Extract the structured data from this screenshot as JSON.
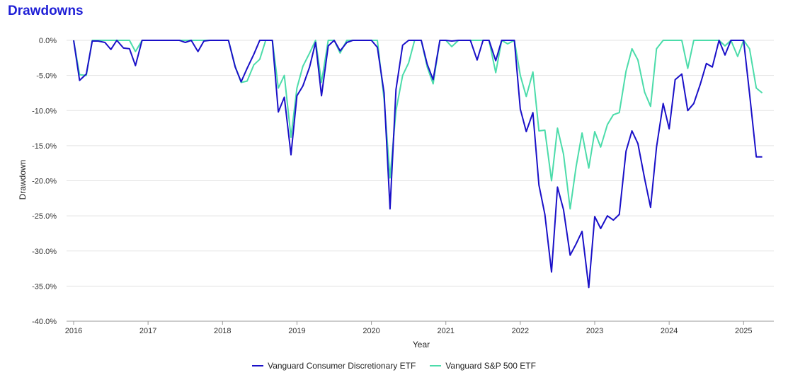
{
  "chart_data": {
    "type": "line",
    "title": "Drawdowns",
    "xlabel": "Year",
    "ylabel": "Drawdown",
    "xlim": [
      2016,
      2025.33
    ],
    "ylim": [
      -40,
      0
    ],
    "yticks": [
      0,
      -5,
      -10,
      -15,
      -20,
      -25,
      -30,
      -35,
      -40
    ],
    "ytick_labels": [
      "0.0%",
      "-5.0%",
      "-10.0%",
      "-15.0%",
      "-20.0%",
      "-25.0%",
      "-30.0%",
      "-35.0%",
      "-40.0%"
    ],
    "xticks": [
      2016,
      2017,
      2018,
      2019,
      2020,
      2021,
      2022,
      2023,
      2024,
      2025
    ],
    "xtick_labels": [
      "2016",
      "2017",
      "2018",
      "2019",
      "2020",
      "2021",
      "2022",
      "2023",
      "2024",
      "2025"
    ],
    "grid": "horizontal",
    "legend_position": "bottom",
    "series": [
      {
        "name": "Vanguard Consumer Discretionary ETF",
        "color": "#1a10c8",
        "points": [
          [
            2016.0,
            0.0
          ],
          [
            2016.08,
            -5.7
          ],
          [
            2016.17,
            -4.8
          ],
          [
            2016.25,
            -0.1
          ],
          [
            2016.33,
            -0.1
          ],
          [
            2016.42,
            -0.3
          ],
          [
            2016.5,
            -1.3
          ],
          [
            2016.58,
            0.0
          ],
          [
            2016.67,
            -1.1
          ],
          [
            2016.75,
            -1.2
          ],
          [
            2016.83,
            -3.6
          ],
          [
            2016.92,
            0.0
          ],
          [
            2017.0,
            0.0
          ],
          [
            2017.08,
            0.0
          ],
          [
            2017.17,
            0.0
          ],
          [
            2017.25,
            0.0
          ],
          [
            2017.33,
            0.0
          ],
          [
            2017.42,
            0.0
          ],
          [
            2017.5,
            -0.3
          ],
          [
            2017.58,
            0.0
          ],
          [
            2017.67,
            -1.6
          ],
          [
            2017.75,
            -0.1
          ],
          [
            2017.83,
            0.0
          ],
          [
            2017.92,
            0.0
          ],
          [
            2018.0,
            0.0
          ],
          [
            2018.08,
            0.0
          ],
          [
            2018.17,
            -3.8
          ],
          [
            2018.25,
            -5.9
          ],
          [
            2018.33,
            -4.0
          ],
          [
            2018.42,
            -2.0
          ],
          [
            2018.5,
            0.0
          ],
          [
            2018.58,
            0.0
          ],
          [
            2018.67,
            0.0
          ],
          [
            2018.75,
            -10.2
          ],
          [
            2018.83,
            -8.1
          ],
          [
            2018.92,
            -16.3
          ],
          [
            2019.0,
            -7.9
          ],
          [
            2019.08,
            -6.5
          ],
          [
            2019.17,
            -3.8
          ],
          [
            2019.25,
            -0.3
          ],
          [
            2019.33,
            -7.9
          ],
          [
            2019.42,
            -0.8
          ],
          [
            2019.5,
            0.0
          ],
          [
            2019.58,
            -1.5
          ],
          [
            2019.67,
            -0.3
          ],
          [
            2019.75,
            0.0
          ],
          [
            2019.83,
            0.0
          ],
          [
            2019.92,
            0.0
          ],
          [
            2020.0,
            0.0
          ],
          [
            2020.08,
            -1.0
          ],
          [
            2020.17,
            -7.5
          ],
          [
            2020.25,
            -24.0
          ],
          [
            2020.33,
            -7.0
          ],
          [
            2020.42,
            -0.7
          ],
          [
            2020.5,
            0.0
          ],
          [
            2020.58,
            0.0
          ],
          [
            2020.67,
            0.0
          ],
          [
            2020.75,
            -3.4
          ],
          [
            2020.83,
            -5.6
          ],
          [
            2020.92,
            0.0
          ],
          [
            2021.0,
            0.0
          ],
          [
            2021.08,
            -0.1
          ],
          [
            2021.17,
            0.0
          ],
          [
            2021.25,
            0.0
          ],
          [
            2021.33,
            0.0
          ],
          [
            2021.42,
            -2.8
          ],
          [
            2021.5,
            0.0
          ],
          [
            2021.58,
            0.0
          ],
          [
            2021.67,
            -2.9
          ],
          [
            2021.75,
            0.0
          ],
          [
            2021.83,
            0.0
          ],
          [
            2021.92,
            0.0
          ],
          [
            2022.0,
            -9.8
          ],
          [
            2022.08,
            -13.0
          ],
          [
            2022.17,
            -10.3
          ],
          [
            2022.25,
            -20.6
          ],
          [
            2022.33,
            -24.8
          ],
          [
            2022.42,
            -33.0
          ],
          [
            2022.5,
            -20.9
          ],
          [
            2022.58,
            -24.1
          ],
          [
            2022.67,
            -30.6
          ],
          [
            2022.75,
            -29.0
          ],
          [
            2022.83,
            -27.2
          ],
          [
            2022.92,
            -35.2
          ],
          [
            2023.0,
            -25.1
          ],
          [
            2023.08,
            -26.8
          ],
          [
            2023.17,
            -25.0
          ],
          [
            2023.25,
            -25.6
          ],
          [
            2023.33,
            -24.8
          ],
          [
            2023.42,
            -15.8
          ],
          [
            2023.5,
            -12.9
          ],
          [
            2023.58,
            -14.7
          ],
          [
            2023.67,
            -19.7
          ],
          [
            2023.75,
            -23.8
          ],
          [
            2023.83,
            -15.2
          ],
          [
            2023.92,
            -9.0
          ],
          [
            2024.0,
            -12.6
          ],
          [
            2024.08,
            -5.6
          ],
          [
            2024.17,
            -4.8
          ],
          [
            2024.25,
            -10.0
          ],
          [
            2024.33,
            -9.0
          ],
          [
            2024.42,
            -6.2
          ],
          [
            2024.5,
            -3.3
          ],
          [
            2024.58,
            -3.8
          ],
          [
            2024.67,
            0.0
          ],
          [
            2024.75,
            -2.1
          ],
          [
            2024.83,
            0.0
          ],
          [
            2024.92,
            0.0
          ],
          [
            2025.0,
            0.0
          ],
          [
            2025.08,
            -7.6
          ],
          [
            2025.17,
            -16.6
          ],
          [
            2025.25,
            -16.6
          ]
        ]
      },
      {
        "name": "Vanguard S&P 500 ETF",
        "color": "#4cdcaa",
        "points": [
          [
            2016.0,
            0.0
          ],
          [
            2016.08,
            -4.9
          ],
          [
            2016.17,
            -5.0
          ],
          [
            2016.25,
            0.0
          ],
          [
            2016.33,
            0.0
          ],
          [
            2016.42,
            0.0
          ],
          [
            2016.5,
            0.0
          ],
          [
            2016.58,
            0.0
          ],
          [
            2016.67,
            0.0
          ],
          [
            2016.75,
            0.0
          ],
          [
            2016.83,
            -1.6
          ],
          [
            2016.92,
            0.0
          ],
          [
            2017.0,
            0.0
          ],
          [
            2017.08,
            0.0
          ],
          [
            2017.17,
            0.0
          ],
          [
            2017.25,
            0.0
          ],
          [
            2017.33,
            0.0
          ],
          [
            2017.42,
            0.0
          ],
          [
            2017.5,
            0.0
          ],
          [
            2017.58,
            0.0
          ],
          [
            2017.67,
            0.0
          ],
          [
            2017.75,
            0.0
          ],
          [
            2017.83,
            0.0
          ],
          [
            2017.92,
            0.0
          ],
          [
            2018.0,
            0.0
          ],
          [
            2018.08,
            0.0
          ],
          [
            2018.17,
            -3.7
          ],
          [
            2018.25,
            -6.0
          ],
          [
            2018.33,
            -5.8
          ],
          [
            2018.42,
            -3.5
          ],
          [
            2018.5,
            -2.7
          ],
          [
            2018.58,
            0.0
          ],
          [
            2018.67,
            0.0
          ],
          [
            2018.75,
            -6.8
          ],
          [
            2018.83,
            -5.0
          ],
          [
            2018.92,
            -13.8
          ],
          [
            2019.0,
            -6.8
          ],
          [
            2019.08,
            -3.7
          ],
          [
            2019.17,
            -1.8
          ],
          [
            2019.25,
            0.0
          ],
          [
            2019.33,
            -6.0
          ],
          [
            2019.42,
            0.0
          ],
          [
            2019.5,
            0.0
          ],
          [
            2019.58,
            -1.8
          ],
          [
            2019.67,
            0.0
          ],
          [
            2019.75,
            0.0
          ],
          [
            2019.83,
            0.0
          ],
          [
            2019.92,
            0.0
          ],
          [
            2020.0,
            0.0
          ],
          [
            2020.08,
            0.0
          ],
          [
            2020.17,
            -8.4
          ],
          [
            2020.25,
            -19.6
          ],
          [
            2020.33,
            -10.0
          ],
          [
            2020.42,
            -5.0
          ],
          [
            2020.5,
            -3.2
          ],
          [
            2020.58,
            0.0
          ],
          [
            2020.67,
            0.0
          ],
          [
            2020.75,
            -3.8
          ],
          [
            2020.83,
            -6.2
          ],
          [
            2020.92,
            0.0
          ],
          [
            2021.0,
            0.0
          ],
          [
            2021.08,
            -0.9
          ],
          [
            2021.17,
            0.0
          ],
          [
            2021.25,
            0.0
          ],
          [
            2021.33,
            0.0
          ],
          [
            2021.42,
            0.0
          ],
          [
            2021.5,
            0.0
          ],
          [
            2021.58,
            0.0
          ],
          [
            2021.67,
            -4.6
          ],
          [
            2021.75,
            0.0
          ],
          [
            2021.83,
            -0.5
          ],
          [
            2021.92,
            0.0
          ],
          [
            2022.0,
            -5.0
          ],
          [
            2022.08,
            -8.0
          ],
          [
            2022.17,
            -4.5
          ],
          [
            2022.25,
            -12.9
          ],
          [
            2022.33,
            -12.8
          ],
          [
            2022.42,
            -20.0
          ],
          [
            2022.5,
            -12.5
          ],
          [
            2022.58,
            -16.2
          ],
          [
            2022.67,
            -24.0
          ],
          [
            2022.75,
            -18.0
          ],
          [
            2022.83,
            -13.2
          ],
          [
            2022.92,
            -18.2
          ],
          [
            2023.0,
            -13.0
          ],
          [
            2023.08,
            -15.2
          ],
          [
            2023.17,
            -12.0
          ],
          [
            2023.25,
            -10.6
          ],
          [
            2023.33,
            -10.3
          ],
          [
            2023.42,
            -4.4
          ],
          [
            2023.5,
            -1.2
          ],
          [
            2023.58,
            -2.8
          ],
          [
            2023.67,
            -7.4
          ],
          [
            2023.75,
            -9.4
          ],
          [
            2023.83,
            -1.2
          ],
          [
            2023.92,
            0.0
          ],
          [
            2024.0,
            0.0
          ],
          [
            2024.08,
            0.0
          ],
          [
            2024.17,
            0.0
          ],
          [
            2024.25,
            -4.0
          ],
          [
            2024.33,
            0.0
          ],
          [
            2024.42,
            0.0
          ],
          [
            2024.5,
            0.0
          ],
          [
            2024.58,
            0.0
          ],
          [
            2024.67,
            0.0
          ],
          [
            2024.75,
            -0.8
          ],
          [
            2024.83,
            0.0
          ],
          [
            2024.92,
            -2.3
          ],
          [
            2025.0,
            0.0
          ],
          [
            2025.08,
            -1.2
          ],
          [
            2025.17,
            -6.8
          ],
          [
            2025.25,
            -7.5
          ]
        ]
      }
    ]
  }
}
